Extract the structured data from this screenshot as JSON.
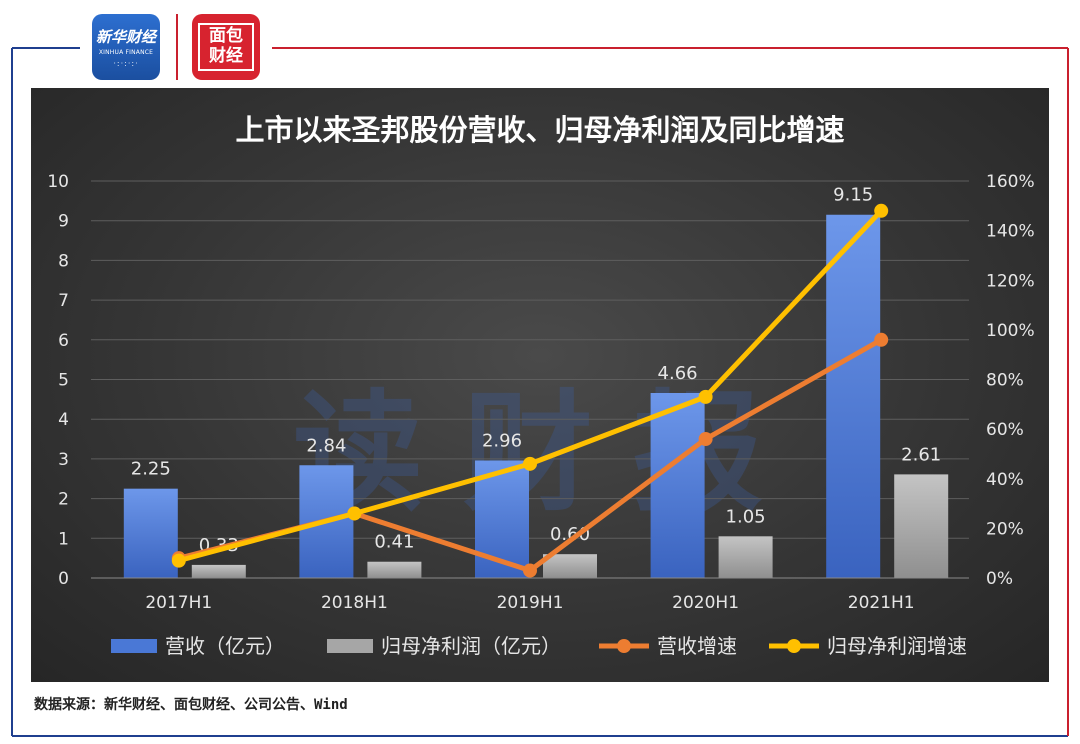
{
  "logos": {
    "xinhua_cn": "新华财经",
    "xinhua_en": "XINHUA FINANCE",
    "mianbao_cn": "面包财经"
  },
  "colors": {
    "frame_blue": "#1f3f8f",
    "frame_red": "#c9202e",
    "bar_revenue": "#4a78d6",
    "bar_profit": "#a6a6a6",
    "line_revenue_growth": "#ed7d31",
    "line_profit_growth": "#ffc000"
  },
  "chart_data": {
    "type": "bar",
    "title": "上市以来圣邦股份营收、归母净利润及同比增速",
    "watermark": "读财报",
    "categories": [
      "2017H1",
      "2018H1",
      "2019H1",
      "2020H1",
      "2021H1"
    ],
    "y_left": {
      "min": 0,
      "max": 10,
      "ticks": [
        "0",
        "1",
        "2",
        "3",
        "4",
        "5",
        "6",
        "7",
        "8",
        "9",
        "10"
      ]
    },
    "y_right": {
      "min": 0,
      "max": 160,
      "ticks": [
        "0%",
        "20%",
        "40%",
        "60%",
        "80%",
        "100%",
        "120%",
        "140%",
        "160%"
      ]
    },
    "grid": true,
    "legend_position": "bottom",
    "series": [
      {
        "name": "营收（亿元）",
        "type": "bar",
        "axis": "left",
        "values": [
          2.25,
          2.84,
          2.96,
          4.66,
          9.15
        ],
        "labels": [
          "2.25",
          "2.84",
          "2.96",
          "4.66",
          "9.15"
        ]
      },
      {
        "name": "归母净利润（亿元）",
        "type": "bar",
        "axis": "left",
        "values": [
          0.33,
          0.41,
          0.6,
          1.05,
          2.61
        ],
        "labels": [
          "0.33",
          "0.41",
          "0.60",
          "1.05",
          "2.61"
        ]
      },
      {
        "name": "营收增速",
        "type": "line",
        "axis": "right",
        "values": [
          8,
          26,
          3,
          56,
          96
        ]
      },
      {
        "name": "归母净利润增速",
        "type": "line",
        "axis": "right",
        "values": [
          7,
          26,
          46,
          73,
          148
        ]
      }
    ]
  },
  "source": "数据来源：新华财经、面包财经、公司公告、Wind"
}
